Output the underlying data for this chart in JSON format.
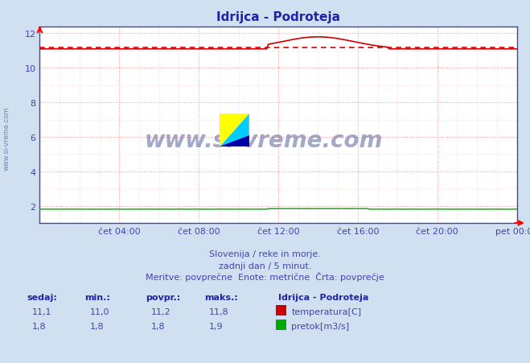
{
  "title": "Idrijca - Podroteja",
  "bg_color": "#d0e0f0",
  "plot_bg_color": "#ffffff",
  "grid_color_major": "#ff9999",
  "grid_color_minor": "#ffcccc",
  "xlabel_color": "#4444aa",
  "title_color": "#2222aa",
  "xtick_labels": [
    "čet 04:00",
    "čet 08:00",
    "čet 12:00",
    "čet 16:00",
    "čet 20:00",
    "pet 00:00"
  ],
  "xtick_positions": [
    4,
    8,
    12,
    16,
    20,
    24
  ],
  "ylim": [
    1.0,
    12.4
  ],
  "xlim": [
    0,
    24
  ],
  "yticks": [
    2,
    4,
    6,
    8,
    10,
    12
  ],
  "temp_avg": 11.2,
  "temp_min": 11.0,
  "temp_max": 11.8,
  "temp_current": 11.1,
  "pretok_avg": 1.8,
  "pretok_min": 1.8,
  "pretok_max": 1.9,
  "pretok_current": 1.8,
  "subtitle1": "Slovenija / reke in morje.",
  "subtitle2": "zadnji dan / 5 minut.",
  "subtitle3": "Meritve: povprečne  Enote: metrične  Črta: povprečje",
  "legend_title": "Idrijca - Podroteja",
  "legend_temp": "temperatura[C]",
  "legend_pretok": "pretok[m3/s]",
  "watermark": "www.si-vreme.com",
  "temp_color": "#cc0000",
  "pretok_color": "#00aa00",
  "avg_line_color": "#cc0000",
  "sidebar_color": "#6688bb"
}
